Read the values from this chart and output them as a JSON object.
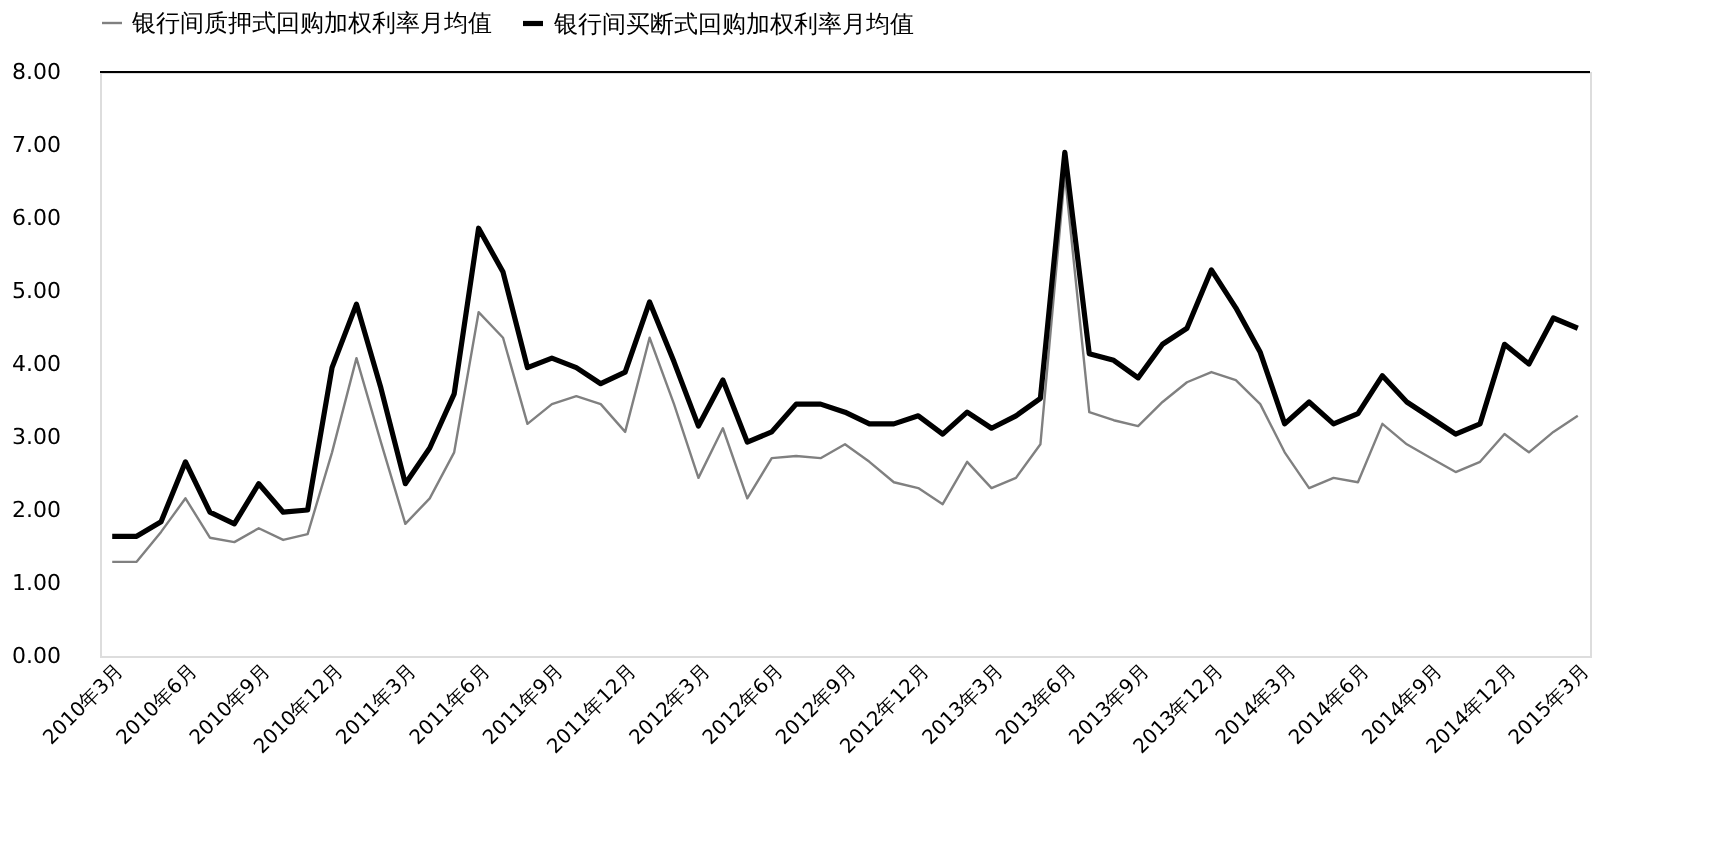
{
  "chart_data": {
    "type": "line",
    "categories": [
      "2010年3月",
      null,
      null,
      "2010年6月",
      null,
      null,
      "2010年9月",
      null,
      null,
      "2010年12月",
      null,
      null,
      "2011年3月",
      null,
      null,
      "2011年6月",
      null,
      null,
      "2011年9月",
      null,
      null,
      "2011年12月",
      null,
      null,
      "2012年3月",
      null,
      null,
      "2012年6月",
      null,
      null,
      "2012年9月",
      null,
      null,
      "2012年12月",
      null,
      null,
      "2013年3月",
      null,
      null,
      "2013年6月",
      null,
      null,
      "2013年9月",
      null,
      null,
      "2013年12月",
      null,
      null,
      "2014年3月",
      null,
      null,
      "2014年6月",
      null,
      null,
      "2014年9月",
      null,
      null,
      "2014年12月",
      null,
      null,
      "2015年3月"
    ],
    "series": [
      {
        "name": "银行间质押式回购加权利率月均值",
        "color": "#808080",
        "values": [
          1.29,
          1.29,
          1.7,
          2.16,
          1.62,
          1.56,
          1.75,
          1.59,
          1.67,
          2.79,
          4.08,
          2.93,
          1.81,
          2.16,
          2.79,
          4.71,
          4.36,
          3.18,
          3.45,
          3.56,
          3.45,
          3.07,
          4.36,
          3.45,
          2.44,
          3.12,
          2.16,
          2.71,
          2.74,
          2.71,
          2.9,
          2.66,
          2.38,
          2.3,
          2.08,
          2.66,
          2.3,
          2.44,
          2.9,
          6.6,
          3.34,
          3.23,
          3.15,
          3.48,
          3.75,
          3.89,
          3.78,
          3.45,
          2.79,
          2.3,
          2.44,
          2.38,
          3.18,
          2.9,
          2.71,
          2.52,
          2.66,
          3.04,
          2.79,
          3.07,
          3.29
        ]
      },
      {
        "name": "银行间买断式回购加权利率月均值",
        "color": "#000000",
        "values": [
          1.64,
          1.64,
          1.84,
          2.66,
          1.97,
          1.81,
          2.36,
          1.97,
          2.0,
          3.95,
          4.82,
          3.67,
          2.36,
          2.85,
          3.59,
          5.86,
          5.26,
          3.95,
          4.08,
          3.95,
          3.73,
          3.89,
          4.85,
          4.03,
          3.15,
          3.78,
          2.93,
          3.07,
          3.45,
          3.45,
          3.34,
          3.18,
          3.18,
          3.29,
          3.04,
          3.34,
          3.12,
          3.29,
          3.53,
          6.9,
          4.14,
          4.05,
          3.81,
          4.27,
          4.49,
          5.29,
          4.77,
          4.16,
          3.18,
          3.48,
          3.18,
          3.32,
          3.84,
          3.48,
          3.26,
          3.04,
          3.18,
          4.27,
          4.0,
          4.63,
          4.49
        ]
      }
    ],
    "ylim": [
      0,
      8
    ],
    "yticks": [
      {
        "value": 0,
        "label": "0.00"
      },
      {
        "value": 1,
        "label": "1.00"
      },
      {
        "value": 2,
        "label": "2.00"
      },
      {
        "value": 3,
        "label": "3.00"
      },
      {
        "value": 4,
        "label": "4.00"
      },
      {
        "value": 5,
        "label": "5.00"
      },
      {
        "value": 6,
        "label": "6.00"
      },
      {
        "value": 7,
        "label": "7.00"
      },
      {
        "value": 8,
        "label": "8.00"
      }
    ],
    "ref_lines": [
      {
        "axis": "y",
        "value": 8
      }
    ],
    "legend": "top",
    "grid": false,
    "marker": "none",
    "line_style": "solid"
  }
}
